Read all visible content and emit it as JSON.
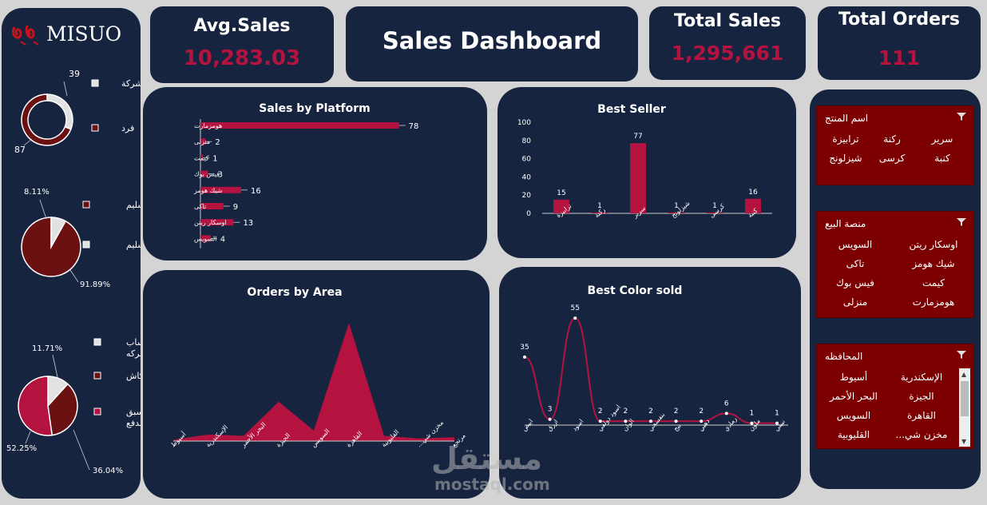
{
  "logo": {
    "text": "MISUO"
  },
  "kpis": {
    "avg_sales": {
      "title": "Avg.Sales",
      "value": "10,283.03"
    },
    "title": "Sales Dashboard",
    "total_sales": {
      "title": "Total Sales",
      "value": "1,295,661"
    },
    "total_orders": {
      "title": "Total Orders",
      "value": "111"
    }
  },
  "colors": {
    "bg": "#172440",
    "accent": "#b4123f",
    "dark_red": "#6b1111",
    "slicer": "#7c0000",
    "light": "#e8e8e8"
  },
  "customer_type": {
    "type": "donut",
    "slices": [
      {
        "label": "شركة",
        "value": 39
      },
      {
        "label": "فرد",
        "value": 87
      }
    ],
    "labels": [
      "39",
      "87"
    ],
    "legend": [
      "شركة",
      "فرد"
    ]
  },
  "delivery_status": {
    "type": "pie",
    "slices": [
      {
        "label": "تم التسليم",
        "value": 91.89
      },
      {
        "label": "فشل التسليم",
        "value": 8.11
      }
    ],
    "labels": [
      "8.11%",
      "91.89%"
    ],
    "legend": [
      "تم التسليم",
      "فشل التسليم"
    ]
  },
  "payment_method": {
    "type": "pie",
    "slices": [
      {
        "label": "حساب شركه",
        "value": 11.71
      },
      {
        "label": "كاش",
        "value": 36.04
      },
      {
        "label": "مسبق الدفع",
        "value": 52.25
      }
    ],
    "labels": [
      "11.71%",
      "36.04%",
      "52.25%"
    ],
    "legend": [
      "حساب شركه",
      "كاش",
      "مسبق الدفع"
    ]
  },
  "chart_data": [
    {
      "type": "bar",
      "orientation": "horizontal",
      "title": "Sales by Platform",
      "categories": [
        "هومزمارت",
        "منزلى",
        "كيمت",
        "فيس بوك",
        "شيك هومز",
        "تاكى",
        "اوسكار ريتن",
        "السويس"
      ],
      "values": [
        78,
        2,
        1,
        3,
        16,
        9,
        13,
        4
      ],
      "xlim": [
        0,
        80
      ]
    },
    {
      "type": "bar",
      "title": "Best  Seller",
      "categories": [
        "ترابيزة",
        "ركنة",
        "سرير",
        "شيزلونج",
        "كرسى",
        "كنبة"
      ],
      "values": [
        15,
        1,
        77,
        1,
        1,
        16
      ],
      "ylim": [
        0,
        100
      ],
      "yticks": [
        "0",
        "20",
        "40",
        "60",
        "80",
        "100"
      ]
    },
    {
      "type": "area",
      "title": "Orders by Area",
      "categories": [
        "أسيوط",
        "الإسكندرية",
        "البحر الأحمر",
        "الجيزة",
        "السويس",
        "القاهرة",
        "القليوبية",
        "مخزن شي...",
        "مرتجع"
      ],
      "values": [
        1,
        5,
        4,
        30,
        8,
        90,
        4,
        2,
        3
      ],
      "ylim": [
        0,
        95
      ]
    },
    {
      "type": "line",
      "title": "Best Color sold",
      "categories": [
        "ابيض",
        "ازرق",
        "اسود",
        "اسود دولفي",
        "الوان",
        "بنفسجي",
        "بيج",
        "دهبي",
        "رمادي",
        "ملون",
        "نبيتي"
      ],
      "values": [
        35,
        3,
        55,
        2,
        2,
        2,
        2,
        2,
        6,
        1,
        1
      ],
      "ylim": [
        0,
        60
      ]
    }
  ],
  "slicers": [
    {
      "header": "اسم المنتج",
      "items": [
        "سرير",
        "ركنة",
        "ترابيزة",
        "كنبة",
        "كرسى",
        "شيزلونج"
      ]
    },
    {
      "header": "منصة البيع",
      "items": [
        "اوسكار ريتن",
        "السويس",
        "شيك هومز",
        "تاكى",
        "كيمت",
        "فيس بوك",
        "هومزمارت",
        "منزلى"
      ]
    },
    {
      "header": "المحافظه",
      "items": [
        "الإسكندرية",
        "أسيوط",
        "الجيزة",
        "البحر الأحمر",
        "القاهرة",
        "السويس",
        "مخزن شي...",
        "القليوبية"
      ]
    }
  ],
  "watermark": {
    "ar": "مستقل",
    "en": "mostaql.com"
  }
}
